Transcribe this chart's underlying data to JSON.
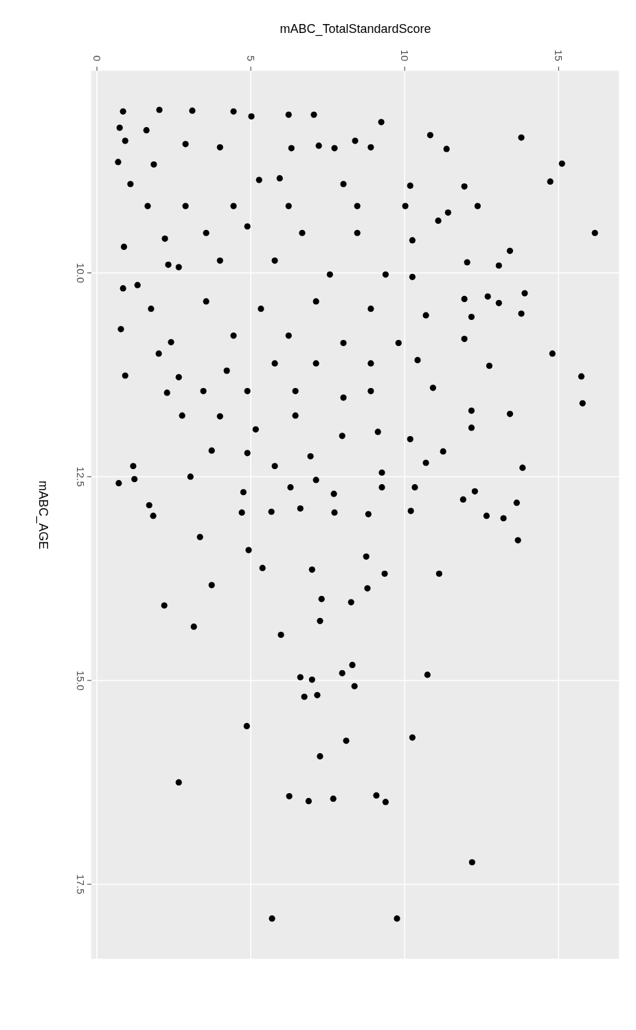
{
  "chart_data": {
    "type": "scatter",
    "xlabel": "mABC_TotalStandardScore",
    "ylabel": "mABC_AGE",
    "xlim": [
      -0.18,
      16.98
    ],
    "xticks": [
      0,
      5,
      10,
      15
    ],
    "ylim": [
      18.42,
      7.52
    ],
    "yticks": [
      {
        "value": 10,
        "label": "10.0"
      },
      {
        "value": 12.5,
        "label": "12.5"
      },
      {
        "value": 15,
        "label": "15.0"
      },
      {
        "value": 17.5,
        "label": "17.5"
      }
    ],
    "grid": true,
    "marker": "circle",
    "series": [
      {
        "color": "#000000",
        "x": [
          0.85,
          2.03,
          3.1,
          4.44,
          5.02,
          6.23,
          7.05,
          9.24,
          0.74,
          1.61,
          10.83,
          13.79,
          0.92,
          2.88,
          4.0,
          6.32,
          7.21,
          7.72,
          8.39,
          8.9,
          11.36,
          0.69,
          15.11,
          1.85,
          1.09,
          14.73,
          11.94,
          5.27,
          5.94,
          8.01,
          10.18,
          12.37,
          1.65,
          2.88,
          4.44,
          6.23,
          8.46,
          10.02,
          11.41,
          11.09,
          2.21,
          0.88,
          3.55,
          4.89,
          6.67,
          8.46,
          10.25,
          16.18,
          13.42,
          13.06,
          12.03,
          2.32,
          2.66,
          4.0,
          5.78,
          7.57,
          9.38,
          10.25,
          0.85,
          1.32,
          13.9,
          12.7,
          13.06,
          13.79,
          11.94,
          12.17,
          1.76,
          3.55,
          5.33,
          7.12,
          8.9,
          10.69,
          0.78,
          2.41,
          4.44,
          6.23,
          8.01,
          9.8,
          11.94,
          14.8,
          12.75,
          0.92,
          2.01,
          2.66,
          4.22,
          5.78,
          7.12,
          8.9,
          10.42,
          15.74,
          15.78,
          2.28,
          3.46,
          4.89,
          6.45,
          8.01,
          8.9,
          10.92,
          12.17,
          13.42,
          2.77,
          4.0,
          5.16,
          6.45,
          7.97,
          9.13,
          10.18,
          12.17,
          11.25,
          3.73,
          1.18,
          4.89,
          5.78,
          6.94,
          9.26,
          10.69,
          13.83,
          0.71,
          1.22,
          3.04,
          4.76,
          6.29,
          7.12,
          7.7,
          9.26,
          10.33,
          11.9,
          12.28,
          1.7,
          1.83,
          4.71,
          5.67,
          6.61,
          7.72,
          8.82,
          10.2,
          12.66,
          13.64,
          13.21,
          13.68,
          3.35,
          4.93,
          8.75,
          5.38,
          6.99,
          9.35,
          11.12,
          3.73,
          8.79,
          7.3,
          8.26,
          2.19,
          7.25,
          3.15,
          5.98,
          8.3,
          7.97,
          10.74,
          6.61,
          6.99,
          8.37,
          6.74,
          7.16,
          4.87,
          8.1,
          10.25,
          7.25,
          2.66,
          6.25,
          7.68,
          9.08,
          9.38,
          6.88,
          12.19,
          5.69,
          9.75
        ],
        "values": [
          8.02,
          8.0,
          8.01,
          8.02,
          8.08,
          8.06,
          8.06,
          8.15,
          8.22,
          8.25,
          8.31,
          8.34,
          8.38,
          8.42,
          8.46,
          8.47,
          8.44,
          8.47,
          8.38,
          8.46,
          8.48,
          8.64,
          8.66,
          8.67,
          8.91,
          8.88,
          8.94,
          8.86,
          8.84,
          8.91,
          8.93,
          9.18,
          9.18,
          9.18,
          9.18,
          9.18,
          9.18,
          9.18,
          9.26,
          9.36,
          9.58,
          9.68,
          9.51,
          9.43,
          9.51,
          9.51,
          9.6,
          9.51,
          9.73,
          9.91,
          9.87,
          9.9,
          9.93,
          9.85,
          9.85,
          10.02,
          10.02,
          10.05,
          10.19,
          10.15,
          10.25,
          10.29,
          10.37,
          10.5,
          10.32,
          10.54,
          10.44,
          10.35,
          10.44,
          10.35,
          10.44,
          10.52,
          10.69,
          10.85,
          10.77,
          10.77,
          10.86,
          10.86,
          10.81,
          10.99,
          11.14,
          11.26,
          10.99,
          11.28,
          11.2,
          11.11,
          11.11,
          11.11,
          11.07,
          11.27,
          11.6,
          11.47,
          11.45,
          11.45,
          11.45,
          11.53,
          11.45,
          11.41,
          11.69,
          11.73,
          11.75,
          11.76,
          11.92,
          11.75,
          12.0,
          11.95,
          12.04,
          11.9,
          12.19,
          12.18,
          12.37,
          12.21,
          12.37,
          12.25,
          12.45,
          12.33,
          12.39,
          12.58,
          12.53,
          12.5,
          12.69,
          12.63,
          12.54,
          12.71,
          12.63,
          12.63,
          12.78,
          12.68,
          12.85,
          12.98,
          12.94,
          12.93,
          12.89,
          12.94,
          12.96,
          12.92,
          12.98,
          12.82,
          13.01,
          13.28,
          13.24,
          13.4,
          13.48,
          13.62,
          13.64,
          13.69,
          13.69,
          13.83,
          13.87,
          14.0,
          14.04,
          14.08,
          14.27,
          14.34,
          14.44,
          14.81,
          14.91,
          14.93,
          14.96,
          14.99,
          15.07,
          15.2,
          15.18,
          15.56,
          15.74,
          15.7,
          15.93,
          16.25,
          16.42,
          16.45,
          16.41,
          16.49,
          16.48,
          17.23,
          17.92,
          17.92
        ]
      }
    ]
  }
}
